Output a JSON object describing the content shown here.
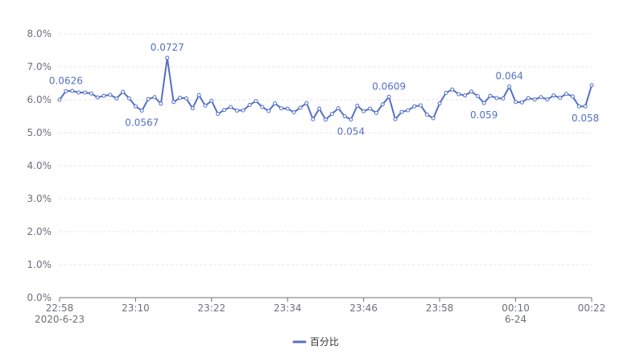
{
  "chart_data": {
    "type": "line",
    "title": "",
    "xlabel": "",
    "ylabel": "",
    "x_tick_labels": [
      {
        "time": "22:58",
        "date": "2020-6-23"
      },
      {
        "time": "23:10",
        "date": ""
      },
      {
        "time": "23:22",
        "date": ""
      },
      {
        "time": "23:34",
        "date": ""
      },
      {
        "time": "23:46",
        "date": ""
      },
      {
        "time": "23:58",
        "date": ""
      },
      {
        "time": "00:10",
        "date": "6-24"
      },
      {
        "time": "00:22",
        "date": ""
      }
    ],
    "x_range": [
      "2020-06-23 22:58",
      "2020-06-24 00:22"
    ],
    "y_tick_labels": [
      "0.0%",
      "1.0%",
      "2.0%",
      "3.0%",
      "4.0%",
      "5.0%",
      "6.0%",
      "7.0%",
      "8.0%"
    ],
    "ylim": [
      0,
      0.08
    ],
    "grid": true,
    "legend_position": "bottom-center",
    "series": [
      {
        "name": "百分比",
        "color": "#5470c6",
        "values": [
          0.06,
          0.0626,
          0.0627,
          0.0622,
          0.0622,
          0.0619,
          0.0607,
          0.0612,
          0.0615,
          0.0604,
          0.0624,
          0.0604,
          0.058,
          0.0567,
          0.0602,
          0.0608,
          0.0588,
          0.0727,
          0.0593,
          0.0606,
          0.0604,
          0.0574,
          0.0614,
          0.0582,
          0.0597,
          0.0557,
          0.0569,
          0.0578,
          0.0567,
          0.0568,
          0.0584,
          0.0596,
          0.0578,
          0.0566,
          0.0589,
          0.0574,
          0.0573,
          0.0562,
          0.0576,
          0.059,
          0.0541,
          0.0573,
          0.054,
          0.0557,
          0.0574,
          0.055,
          0.054,
          0.0582,
          0.0565,
          0.0573,
          0.056,
          0.0586,
          0.0609,
          0.0541,
          0.0563,
          0.0568,
          0.058,
          0.0583,
          0.0555,
          0.0544,
          0.0589,
          0.0621,
          0.0631,
          0.0617,
          0.0613,
          0.0625,
          0.0611,
          0.059,
          0.0612,
          0.0605,
          0.0604,
          0.064,
          0.0593,
          0.0592,
          0.0605,
          0.0601,
          0.0608,
          0.0601,
          0.0613,
          0.0606,
          0.0618,
          0.061,
          0.058,
          0.058,
          0.0644
        ],
        "labels": [
          {
            "index": 1,
            "text": "0.0626",
            "position": "above"
          },
          {
            "index": 13,
            "text": "0.0567",
            "position": "below"
          },
          {
            "index": 17,
            "text": "0.0727",
            "position": "above"
          },
          {
            "index": 46,
            "text": "0.054",
            "position": "below"
          },
          {
            "index": 52,
            "text": "0.0609",
            "position": "above"
          },
          {
            "index": 67,
            "text": "0.059",
            "position": "below"
          },
          {
            "index": 71,
            "text": "0.064",
            "position": "above"
          },
          {
            "index": 83,
            "text": "0.058",
            "position": "below"
          }
        ]
      }
    ]
  }
}
